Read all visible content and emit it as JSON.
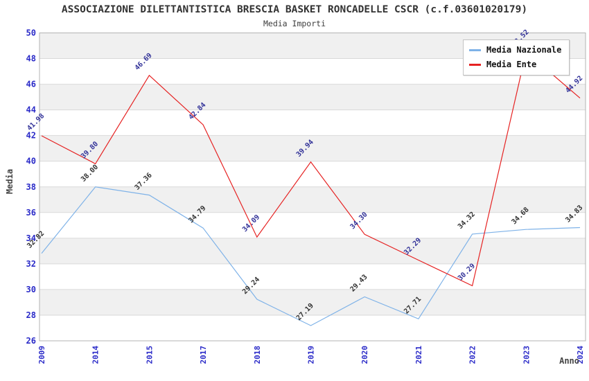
{
  "header": {
    "title": "ASSOCIAZIONE DILETTANTISTICA BRESCIA BASKET RONCADELLE CSCR (c.f.03601020179)",
    "subtitle": "Media Importi"
  },
  "axes": {
    "y_title": "Media",
    "x_title": "Anno",
    "y_ticks": [
      26,
      28,
      30,
      32,
      34,
      36,
      38,
      40,
      42,
      44,
      46,
      48,
      50
    ],
    "x_ticks": [
      "2009",
      "2014",
      "2015",
      "2017",
      "2018",
      "2019",
      "2020",
      "2021",
      "2022",
      "2023",
      "2024"
    ]
  },
  "legend": {
    "items": [
      {
        "label": "Media Nazionale",
        "color": "#7eb2e8"
      },
      {
        "label": "Media Ente",
        "color": "#e62222"
      }
    ]
  },
  "chart_data": {
    "type": "line",
    "title": "Media Importi",
    "xlabel": "Anno",
    "ylabel": "Media",
    "x": [
      "2009",
      "2014",
      "2015",
      "2017",
      "2018",
      "2019",
      "2020",
      "2021",
      "2022",
      "2023",
      "2024"
    ],
    "series": [
      {
        "name": "Media Nazionale",
        "color": "#7eb2e8",
        "label_color": "#333333",
        "values": [
          32.82,
          38.0,
          37.36,
          34.79,
          29.24,
          27.19,
          29.43,
          27.71,
          34.32,
          34.68,
          34.83
        ]
      },
      {
        "name": "Media Ente",
        "color": "#e62222",
        "label_color": "#333399",
        "values": [
          41.98,
          39.8,
          46.69,
          42.84,
          34.09,
          39.94,
          34.3,
          32.29,
          30.29,
          48.52,
          44.92
        ]
      }
    ],
    "ylim": [
      26,
      50
    ],
    "ytick_step": 2,
    "grid": "horizontal gridlines with alternating gray bands",
    "legend_position": "top-right",
    "point_labels": "values shown rotated 45deg at each point; 2023 Media Ente label hidden behind legend (value estimated from line)"
  },
  "colors": {
    "tick_text": "#2a2ac8",
    "band_gray": "#f0f0f0",
    "gridline": "#d9d9d9",
    "plot_border": "#b3b3b3",
    "background": "#ffffff"
  }
}
